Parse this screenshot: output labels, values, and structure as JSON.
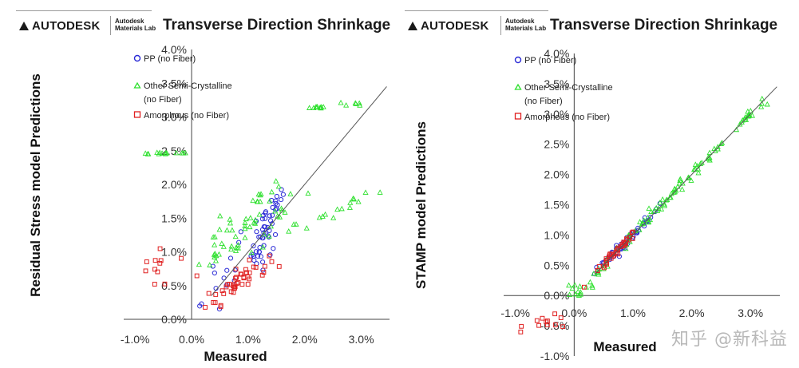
{
  "brand": {
    "logo_text": "AUTODESK",
    "lab_text": "Autodesk\nMaterials Lab"
  },
  "watermark": "知乎 @新科益",
  "colors": {
    "pp": "#2b2bd6",
    "semi": "#2ee02e",
    "amorphous": "#e02020",
    "diagonal": "#555555",
    "axis": "#444444"
  },
  "chart_data": [
    {
      "type": "scatter",
      "title": "Transverse Direction Shrinkage",
      "xlabel": "Measured",
      "ylabel": "Residual Stress model Predictions",
      "xlim": [
        -1.2,
        3.5
      ],
      "ylim": [
        0.0,
        4.0
      ],
      "x_ticks": [
        "-1.0%",
        "0.0%",
        "1.0%",
        "2.0%",
        "3.0%"
      ],
      "x_tick_values": [
        -1.0,
        0.0,
        1.0,
        2.0,
        3.0
      ],
      "y_ticks": [
        "0.0%",
        "0.5%",
        "1.0%",
        "1.5%",
        "2.0%",
        "2.5%",
        "3.0%",
        "3.5%",
        "4.0%"
      ],
      "y_tick_values": [
        0.0,
        0.5,
        1.0,
        1.5,
        2.0,
        2.5,
        3.0,
        3.5,
        4.0
      ],
      "reference_line": "y = x",
      "legend_position": "top-left inside plot",
      "series": [
        {
          "name": "PP (no Fiber)",
          "marker": "circle",
          "color_key": "pp",
          "clusters": [
            [
              0.5,
              0.5,
              0.6,
              0.55,
              1.1,
              0.5,
              16
            ],
            [
              1.3,
              1.2,
              0.25,
              0.3,
              1.0,
              0.5,
              36
            ],
            [
              1.4,
              1.6,
              0.25,
              0.15,
              1.0,
              0.6,
              18
            ]
          ]
        },
        {
          "name": "Other Semi-Crystalline",
          "name_line2": "(no Fiber)",
          "marker": "triangle",
          "color_key": "semi",
          "clusters": [
            [
              1.0,
              1.3,
              1.0,
              0.25,
              0.6,
              0.4,
              34
            ],
            [
              2.2,
              1.5,
              1.2,
              0.15,
              0.35,
              0.4,
              22
            ],
            [
              0.3,
              1.1,
              0.5,
              0.3,
              0.3,
              0.6,
              10
            ],
            [
              -0.5,
              2.46,
              0.6,
              0.02,
              0,
              0.3,
              14
            ],
            [
              2.3,
              3.14,
              0.2,
              0.02,
              0,
              0.3,
              10
            ],
            [
              2.9,
              3.2,
              0.3,
              0.05,
              0,
              0.3,
              6
            ],
            [
              1.2,
              1.8,
              0.4,
              0.15,
              0.5,
              0.3,
              12
            ]
          ]
        },
        {
          "name": "Amorphous (no Fiber)",
          "marker": "square",
          "color_key": "amorphous",
          "clusters": [
            [
              0.8,
              0.55,
              0.55,
              0.18,
              0.55,
              0.4,
              44
            ],
            [
              -0.6,
              0.7,
              0.5,
              0.4,
              0,
              0.4,
              12
            ]
          ]
        }
      ]
    },
    {
      "type": "scatter",
      "title": "Transverse Direction Shrinkage",
      "xlabel": "Measured",
      "ylabel": "STAMP model Predictions",
      "xlim": [
        -1.2,
        3.5
      ],
      "ylim": [
        -1.0,
        4.0
      ],
      "x_ticks": [
        "-1.0%",
        "0.0%",
        "1.0%",
        "2.0%",
        "3.0%"
      ],
      "x_tick_values": [
        -1.0,
        0.0,
        1.0,
        2.0,
        3.0
      ],
      "y_ticks": [
        "-1.0%",
        "-0.5%",
        "0.0%",
        "0.5%",
        "1.0%",
        "1.5%",
        "2.0%",
        "2.5%",
        "3.0%",
        "3.5%",
        "4.0%"
      ],
      "y_tick_values": [
        -1.0,
        -0.5,
        0.0,
        0.5,
        1.0,
        1.5,
        2.0,
        2.5,
        3.0,
        3.5,
        4.0
      ],
      "reference_line": "y = x",
      "legend_position": "top-left inside plot",
      "series": [
        {
          "name": "PP (no Fiber)",
          "marker": "circle",
          "color_key": "pp",
          "clusters": [
            [
              1.0,
              1.0,
              0.45,
              0.08,
              1.0,
              0.3,
              40
            ],
            [
              0.6,
              0.65,
              0.25,
              0.06,
              1.0,
              0.3,
              14
            ]
          ]
        },
        {
          "name": "Other Semi-Crystalline",
          "name_line2": "(no Fiber)",
          "marker": "triangle",
          "color_key": "semi",
          "clusters": [
            [
              1.6,
              1.6,
              1.5,
              0.1,
              1.0,
              0.4,
              80
            ],
            [
              3.0,
              3.0,
              0.4,
              0.08,
              1.0,
              0.4,
              14
            ],
            [
              0.1,
              0.1,
              0.4,
              0.2,
              0.5,
              0.5,
              14
            ]
          ]
        },
        {
          "name": "Amorphous (no Fiber)",
          "marker": "square",
          "color_key": "amorphous",
          "clusters": [
            [
              0.7,
              0.7,
              0.4,
              0.08,
              1.0,
              0.3,
              40
            ],
            [
              -0.4,
              -0.45,
              0.45,
              0.12,
              0,
              0.4,
              12
            ]
          ]
        }
      ]
    }
  ]
}
